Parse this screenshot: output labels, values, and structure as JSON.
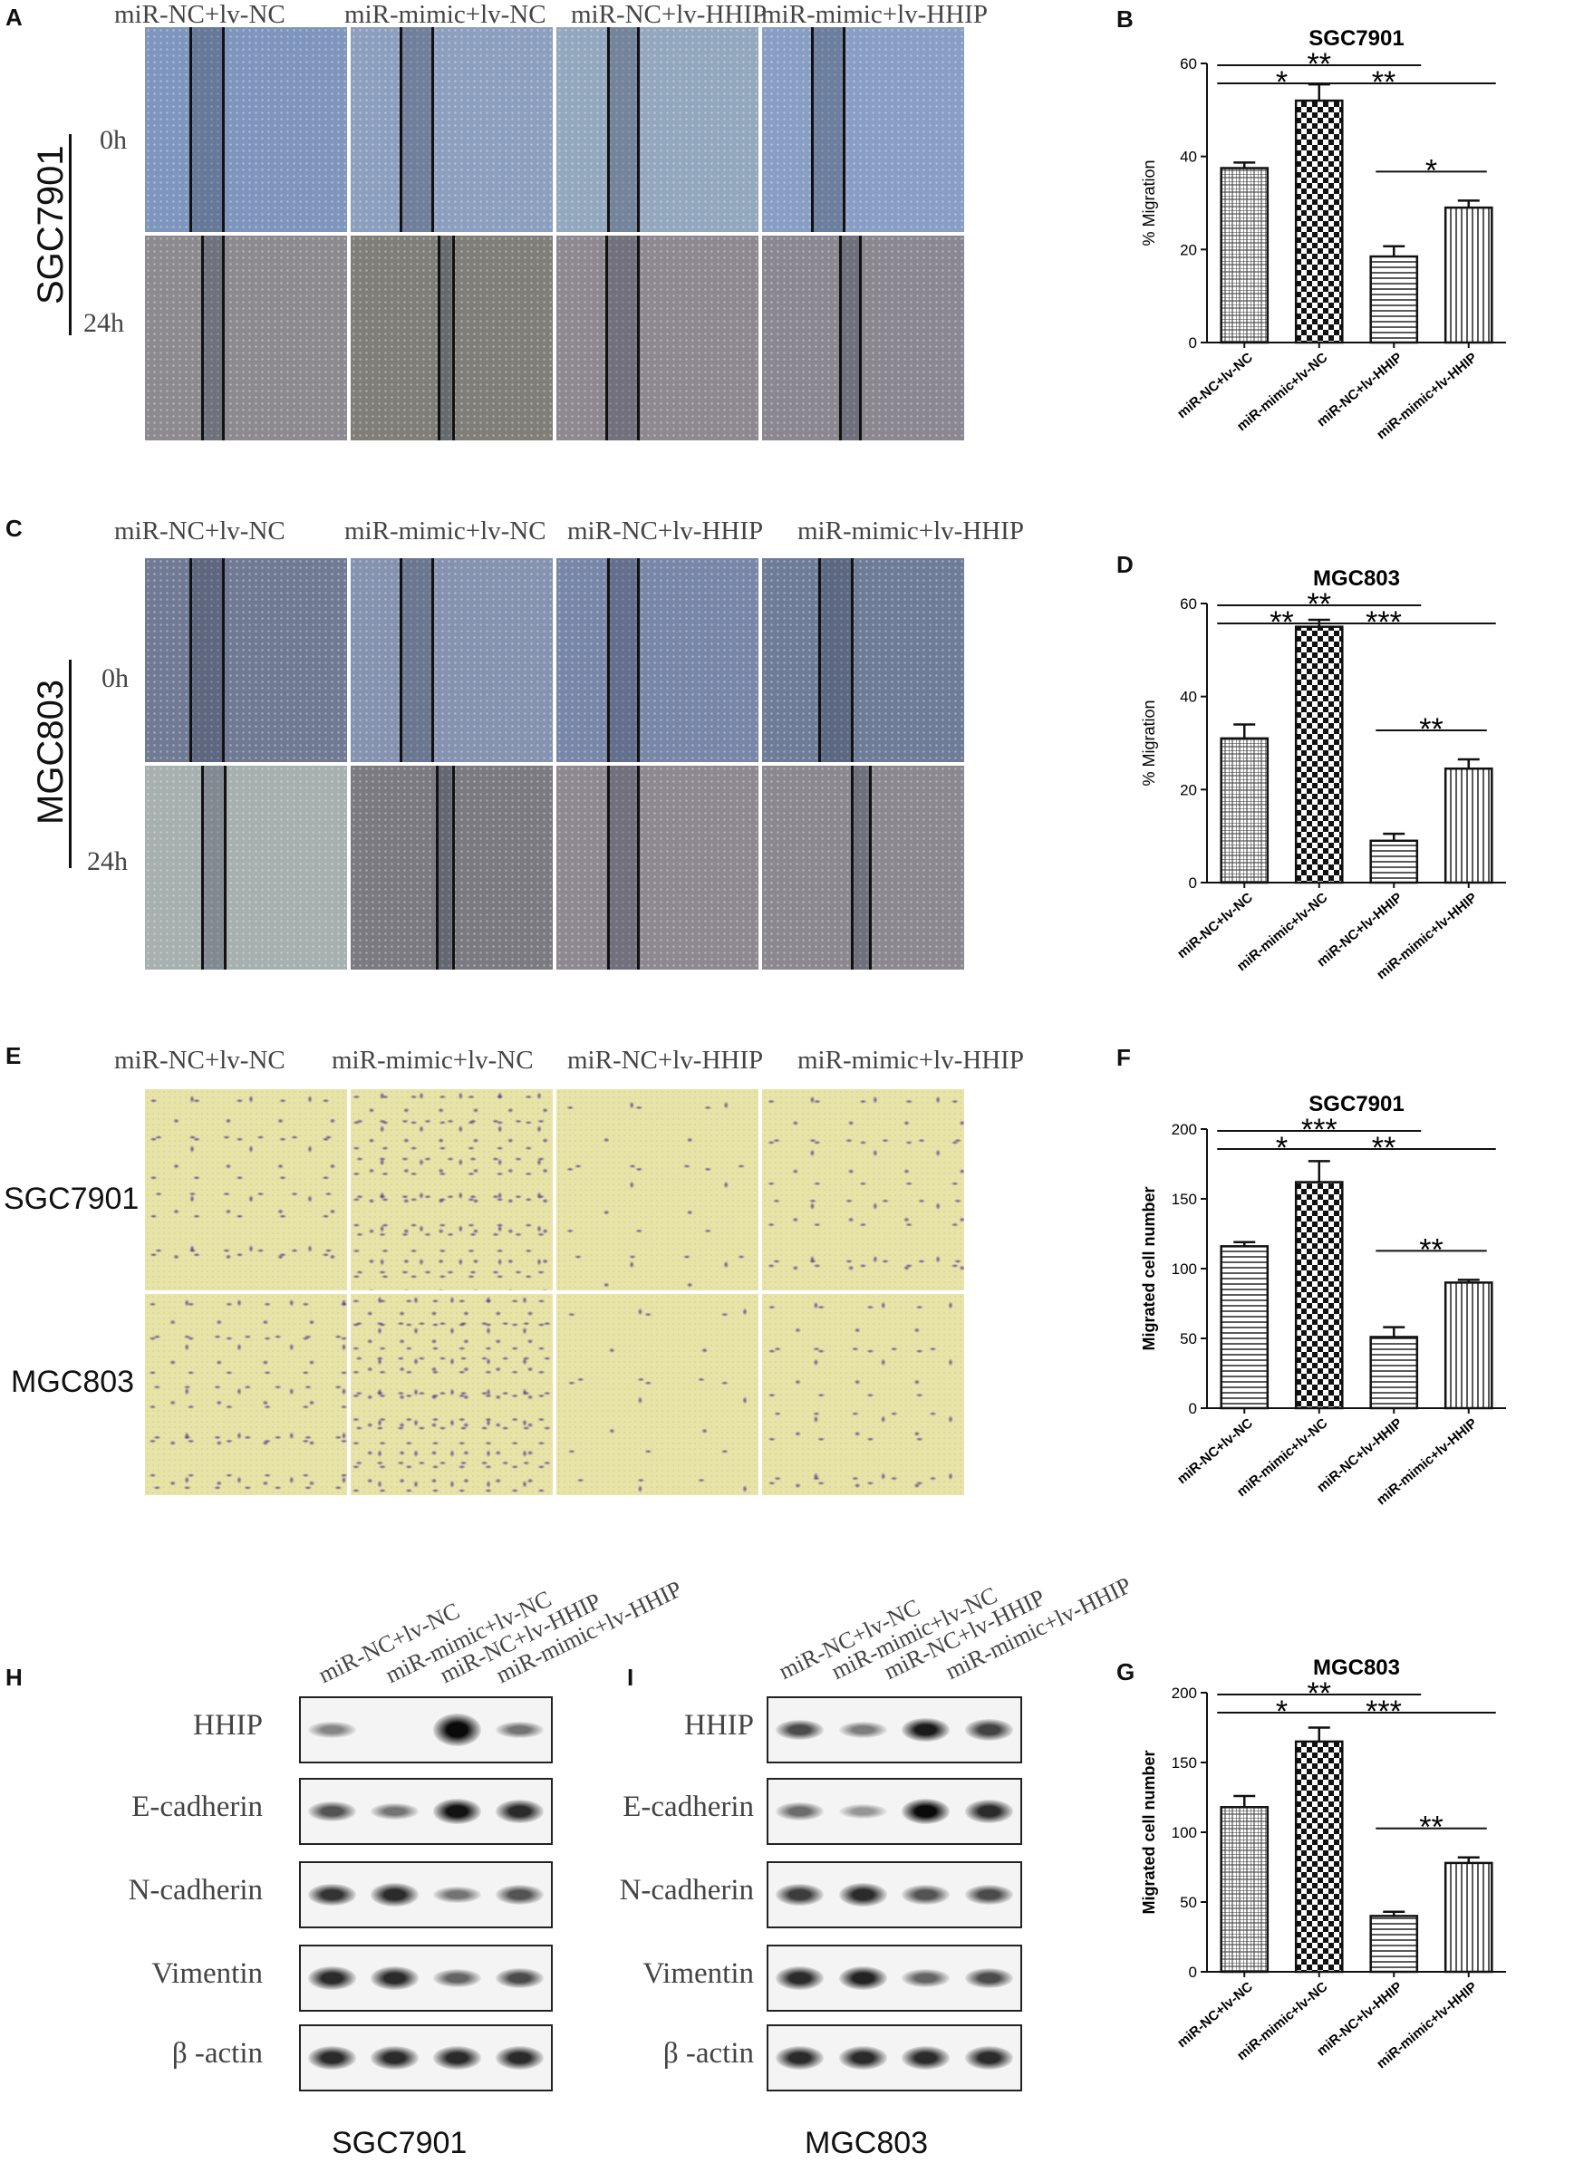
{
  "panels": {
    "A": "A",
    "B": "B",
    "C": "C",
    "D": "D",
    "E": "E",
    "F": "F",
    "G": "G",
    "H": "H",
    "I": "I"
  },
  "groups": [
    "miR-NC+lv-NC",
    "miR-mimic+lv-NC",
    "miR-NC+lv-HHIP",
    "miR-mimic+lv-HHIP"
  ],
  "wound_A": {
    "cell_line": "SGC7901",
    "times": [
      "0h",
      "24h"
    ]
  },
  "wound_C": {
    "cell_line": "MGC803",
    "times": [
      "0h",
      "24h"
    ]
  },
  "transwell_E": {
    "rows": [
      "SGC7901",
      "MGC803"
    ]
  },
  "blot_H": {
    "cell_line": "SGC7901",
    "proteins": [
      "HHIP",
      "E-cadherin",
      "N-cadherin",
      "Vimentin",
      "β -actin"
    ]
  },
  "blot_I": {
    "cell_line": "MGC803",
    "proteins": [
      "HHIP",
      "E-cadherin",
      "N-cadherin",
      "Vimentin",
      "β -actin"
    ]
  },
  "colors": {
    "bar_stroke": "#111111",
    "wound_0h": "#7f93b5",
    "wound_24h": "#8a8890",
    "stain": "#5b3f8f",
    "membrane": "#e8e4a8"
  },
  "chart_data": [
    {
      "id": "B",
      "type": "bar",
      "title": "SGC7901",
      "ylabel": "% Migration",
      "categories": [
        "miR-NC+lv-NC",
        "miR-mimic+lv-NC",
        "miR-NC+lv-HHIP",
        "miR-mimic+lv-HHIP"
      ],
      "values": [
        37.5,
        52,
        18.5,
        29
      ],
      "errors": [
        1.2,
        3.5,
        2.2,
        1.5
      ],
      "ylim": [
        0,
        60
      ],
      "yticks": [
        0,
        20,
        40,
        60
      ],
      "patterns": [
        "grid",
        "check",
        "hlines",
        "vlines"
      ],
      "significance": [
        {
          "from": 0,
          "to": 2,
          "label": "**"
        },
        {
          "from": 0,
          "to": 1,
          "label": "*"
        },
        {
          "from": 1,
          "to": 3,
          "label": "**"
        },
        {
          "from": 2,
          "to": 3,
          "label": "*"
        }
      ]
    },
    {
      "id": "D",
      "type": "bar",
      "title": "MGC803",
      "ylabel": "% Migration",
      "categories": [
        "miR-NC+lv-NC",
        "miR-mimic+lv-NC",
        "miR-NC+lv-HHIP",
        "miR-mimic+lv-HHIP"
      ],
      "values": [
        31,
        55,
        9,
        24.5
      ],
      "errors": [
        3,
        1.5,
        1.5,
        2
      ],
      "ylim": [
        0,
        60
      ],
      "yticks": [
        0,
        20,
        40,
        60
      ],
      "patterns": [
        "grid",
        "check",
        "hlines",
        "vlines"
      ],
      "significance": [
        {
          "from": 0,
          "to": 2,
          "label": "**"
        },
        {
          "from": 0,
          "to": 1,
          "label": "**"
        },
        {
          "from": 1,
          "to": 3,
          "label": "***"
        },
        {
          "from": 2,
          "to": 3,
          "label": "**"
        }
      ]
    },
    {
      "id": "F",
      "type": "bar",
      "title": "SGC7901",
      "ylabel": "Migrated cell number",
      "categories": [
        "miR-NC+lv-NC",
        "miR-mimic+lv-NC",
        "miR-NC+lv-HHIP",
        "miR-mimic+lv-HHIP"
      ],
      "values": [
        116,
        162,
        51,
        90
      ],
      "errors": [
        3,
        15,
        7,
        2
      ],
      "ylim": [
        0,
        200
      ],
      "yticks": [
        0,
        50,
        100,
        150,
        200
      ],
      "patterns": [
        "hlines",
        "check",
        "hlines",
        "vlines"
      ],
      "significance": [
        {
          "from": 0,
          "to": 2,
          "label": "***"
        },
        {
          "from": 0,
          "to": 1,
          "label": "*"
        },
        {
          "from": 1,
          "to": 3,
          "label": "**"
        },
        {
          "from": 2,
          "to": 3,
          "label": "**"
        }
      ]
    },
    {
      "id": "G",
      "type": "bar",
      "title": "MGC803",
      "ylabel": "Migrated cell number",
      "categories": [
        "miR-NC+lv-NC",
        "miR-mimic+lv-NC",
        "miR-NC+lv-HHIP",
        "miR-mimic+lv-HHIP"
      ],
      "values": [
        118,
        165,
        40,
        78
      ],
      "errors": [
        8,
        10,
        3,
        4
      ],
      "ylim": [
        0,
        200
      ],
      "yticks": [
        0,
        50,
        100,
        150,
        200
      ],
      "patterns": [
        "grid",
        "check",
        "hlines",
        "vlines"
      ],
      "significance": [
        {
          "from": 0,
          "to": 2,
          "label": "**"
        },
        {
          "from": 0,
          "to": 1,
          "label": "*"
        },
        {
          "from": 1,
          "to": 3,
          "label": "***"
        },
        {
          "from": 2,
          "to": 3,
          "label": "**"
        }
      ]
    }
  ]
}
